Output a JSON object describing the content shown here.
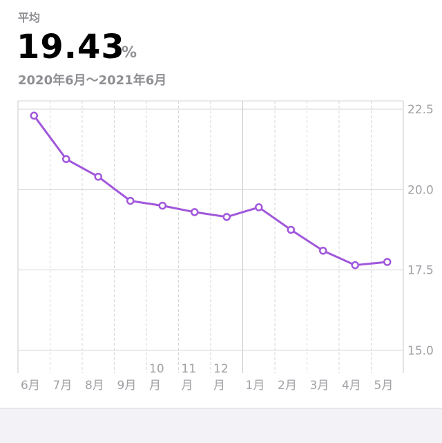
{
  "header": {
    "avg_label": "平均",
    "avg_value": "19.43",
    "avg_unit": "%",
    "date_range": "2020年6月〜2021年6月"
  },
  "colors": {
    "line": "#a157db",
    "grid": "#d6d6d6",
    "tick_text": "#a0a0a5"
  },
  "chart_data": {
    "type": "line",
    "categories": [
      "6月",
      "7月",
      "8月",
      "9月",
      "10\n月",
      "11\n月",
      "12\n月",
      "1月",
      "2月",
      "3月",
      "4月",
      "5月"
    ],
    "series": [
      {
        "values": [
          22.3,
          20.95,
          20.4,
          19.65,
          19.5,
          19.3,
          19.15,
          19.45,
          18.75,
          18.1,
          17.65,
          17.75
        ]
      }
    ],
    "yticks": [
      22.5,
      20.0,
      17.5,
      15.0
    ],
    "ytick_labels": [
      "22.5",
      "20.0",
      "17.5",
      "15.0"
    ],
    "ylim": [
      15.0,
      22.5
    ],
    "grid": true
  }
}
